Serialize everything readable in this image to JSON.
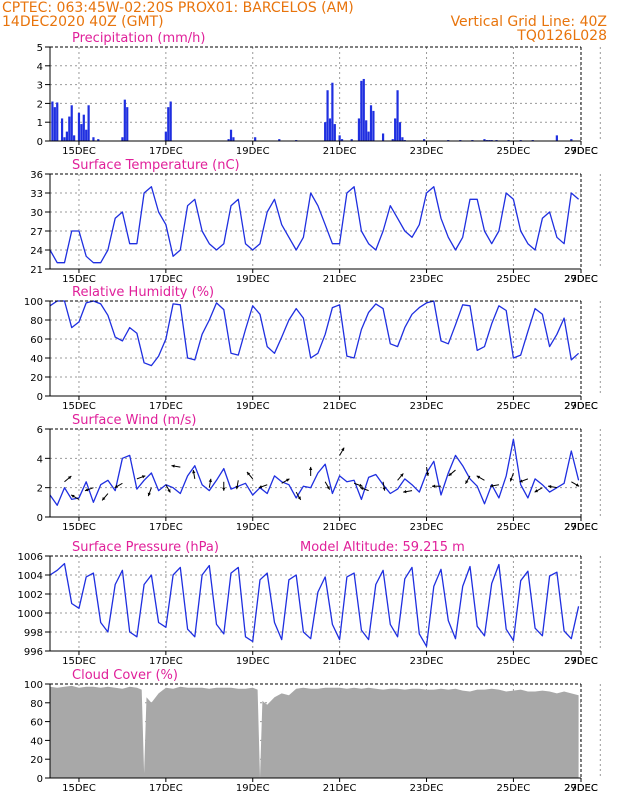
{
  "header": {
    "line1_left": "CPTEC:    063:45W-02:20S    PROX01: BARCELOS (AM)",
    "line2_left": "14DEC2020 40Z (GMT)",
    "line2_right": "Vertical Grid Line: 40Z",
    "line3_right": "TQ0126L028"
  },
  "colors": {
    "line": "#1f2fe0",
    "bar": "#1f2fe0",
    "cloud": "#a8a8a8",
    "title": "#e0209a",
    "header": "#e8740c",
    "grid": "#9a9a9a"
  },
  "x_tick_labels": [
    "15DEC",
    "17DEC",
    "19DEC",
    "21DEC",
    "23DEC",
    "25DEC",
    "27DEC",
    "29DEC"
  ],
  "chart_data": [
    {
      "id": "precip",
      "type": "bar",
      "title": "Precipitation (mm/h)",
      "ylim": [
        0,
        5
      ],
      "yticks": [
        0,
        1,
        2,
        3,
        4,
        5
      ],
      "x_hours": [
        2,
        4,
        6,
        10,
        12,
        14,
        16,
        18,
        20,
        24,
        26,
        28,
        30,
        32,
        36,
        40,
        60,
        62,
        64,
        96,
        98,
        100,
        148,
        150,
        152,
        170,
        190,
        204,
        228,
        230,
        232,
        234,
        236,
        240,
        242,
        250,
        256,
        258,
        260,
        262,
        264,
        266,
        268,
        276,
        284,
        286,
        288,
        290,
        292,
        294,
        310,
        330,
        340,
        350,
        360,
        362,
        364,
        366,
        370,
        380,
        390,
        400,
        420,
        432
      ],
      "values": [
        2.1,
        1.8,
        2.05,
        1.2,
        0.2,
        0.5,
        1.3,
        1.9,
        0.3,
        1.5,
        0.9,
        1.4,
        0.6,
        1.9,
        0.2,
        0.1,
        0.2,
        2.2,
        1.8,
        0.5,
        1.8,
        2.1,
        0.1,
        0.6,
        0.2,
        0.2,
        0.1,
        0.05,
        1.0,
        2.7,
        1.2,
        3.1,
        0.9,
        0.3,
        0.1,
        0.1,
        1.2,
        3.2,
        3.3,
        1.1,
        0.5,
        1.9,
        1.6,
        0.4,
        0.1,
        1.2,
        2.7,
        1.0,
        0.2,
        0.05,
        0.1,
        0.05,
        0.05,
        0.05,
        0.1,
        0.05,
        0.05,
        0.05,
        0.05,
        0.05,
        0.05,
        0.05,
        0.3,
        0.1
      ]
    },
    {
      "id": "temp",
      "type": "line",
      "title": "Surface Temperature (nC)",
      "ylim": [
        21,
        36
      ],
      "yticks": [
        21,
        24,
        27,
        30,
        33,
        36
      ],
      "x": [
        0,
        6,
        12,
        18,
        24,
        30,
        36,
        42,
        48,
        54,
        60,
        66,
        72,
        78,
        84,
        90,
        96,
        102,
        108,
        114,
        120,
        126,
        132,
        138,
        144,
        150,
        156,
        162,
        168,
        174,
        180,
        186,
        192,
        198,
        204,
        210,
        216,
        222,
        228,
        234,
        240,
        246,
        252,
        258,
        264,
        270,
        276,
        282,
        288,
        294,
        300,
        306,
        312,
        318,
        324,
        330,
        336,
        342,
        348,
        354,
        360,
        366,
        372,
        378,
        384,
        390,
        396,
        402,
        408,
        414,
        420,
        426,
        432,
        438
      ],
      "values": [
        24,
        22,
        22,
        27,
        27,
        23,
        22,
        22,
        24,
        29,
        30,
        25,
        25,
        33,
        34,
        30,
        28,
        23,
        24,
        31,
        32,
        27,
        25,
        24,
        25,
        31,
        32,
        25,
        24,
        25,
        30,
        32,
        28,
        26,
        24,
        26,
        33,
        31,
        28,
        25,
        25,
        33,
        34,
        27,
        25,
        24,
        27,
        31,
        29,
        27,
        26,
        28,
        33,
        34,
        29,
        26,
        24,
        26,
        32,
        32,
        27,
        25,
        27,
        33,
        32,
        27,
        25,
        24,
        29,
        30,
        26,
        25,
        33,
        32
      ]
    },
    {
      "id": "rh",
      "type": "line",
      "title": "Relative Humidity (%)",
      "ylim": [
        0,
        100
      ],
      "yticks": [
        0,
        20,
        40,
        60,
        80,
        100
      ],
      "x": [
        0,
        6,
        12,
        18,
        24,
        30,
        36,
        42,
        48,
        54,
        60,
        66,
        72,
        78,
        84,
        90,
        96,
        102,
        108,
        114,
        120,
        126,
        132,
        138,
        144,
        150,
        156,
        162,
        168,
        174,
        180,
        186,
        192,
        198,
        204,
        210,
        216,
        222,
        228,
        234,
        240,
        246,
        252,
        258,
        264,
        270,
        276,
        282,
        288,
        294,
        300,
        306,
        312,
        318,
        324,
        330,
        336,
        342,
        348,
        354,
        360,
        366,
        372,
        378,
        384,
        390,
        396,
        402,
        408,
        414,
        420,
        426,
        432,
        438
      ],
      "values": [
        95,
        100,
        100,
        72,
        78,
        98,
        100,
        97,
        85,
        62,
        58,
        72,
        66,
        35,
        32,
        42,
        60,
        97,
        96,
        40,
        38,
        65,
        80,
        98,
        91,
        45,
        43,
        70,
        95,
        86,
        52,
        45,
        62,
        80,
        92,
        82,
        40,
        45,
        65,
        93,
        96,
        42,
        40,
        70,
        88,
        97,
        92,
        55,
        52,
        72,
        86,
        93,
        98,
        100,
        58,
        55,
        75,
        96,
        95,
        48,
        52,
        76,
        95,
        90,
        40,
        43,
        68,
        92,
        86,
        52,
        65,
        82,
        38,
        45
      ]
    },
    {
      "id": "wind",
      "type": "line",
      "title": "Surface Wind (m/s)",
      "ylim": [
        0,
        6
      ],
      "yticks": [
        0,
        2,
        4,
        6
      ],
      "x": [
        0,
        6,
        12,
        18,
        24,
        30,
        36,
        42,
        48,
        54,
        60,
        66,
        72,
        78,
        84,
        90,
        96,
        102,
        108,
        114,
        120,
        126,
        132,
        138,
        144,
        150,
        156,
        162,
        168,
        174,
        180,
        186,
        192,
        198,
        204,
        210,
        216,
        222,
        228,
        234,
        240,
        246,
        252,
        258,
        264,
        270,
        276,
        282,
        288,
        294,
        300,
        306,
        312,
        318,
        324,
        330,
        336,
        342,
        348,
        354,
        360,
        366,
        372,
        378,
        384,
        390,
        396,
        402,
        408,
        414,
        420,
        426,
        432,
        438
      ],
      "values": [
        1.5,
        0.8,
        2.0,
        1.2,
        1.3,
        2.4,
        1.0,
        2.2,
        2.5,
        1.8,
        4.0,
        4.2,
        1.9,
        2.5,
        3.0,
        1.8,
        2.2,
        2.0,
        1.6,
        2.8,
        3.5,
        2.2,
        1.8,
        2.5,
        3.3,
        1.9,
        2.1,
        2.3,
        1.5,
        2.0,
        1.6,
        2.8,
        2.4,
        2.2,
        1.3,
        2.1,
        2.0,
        3.0,
        3.6,
        1.6,
        2.8,
        2.4,
        2.5,
        1.2,
        2.7,
        2.9,
        2.2,
        1.6,
        1.9,
        2.6,
        2.2,
        1.7,
        3.0,
        3.8,
        1.5,
        3.0,
        4.2,
        3.5,
        2.6,
        2.1,
        0.9,
        2.2,
        1.3,
        2.8,
        5.3,
        2.2,
        1.3,
        2.6,
        2.2,
        1.7,
        2.0,
        2.3,
        4.5,
        2.5
      ],
      "barbs_hour": [
        12,
        24,
        36,
        48,
        60,
        72,
        84,
        96,
        108,
        120,
        132,
        144,
        156,
        168,
        180,
        192,
        204,
        216,
        228,
        240,
        252,
        264,
        276,
        288,
        300,
        312,
        324,
        336,
        348,
        360,
        372,
        384,
        396,
        408,
        420,
        432
      ],
      "barbs_speed": [
        2.4,
        1.2,
        2.0,
        1.6,
        2.3,
        2.6,
        2.0,
        2.2,
        3.4,
        2.6,
        2.0,
        2.4,
        2.5,
        2.6,
        2.2,
        2.3,
        1.7,
        2.8,
        2.4,
        4.2,
        2.3,
        1.8,
        2.4,
        2.5,
        1.8,
        3.4,
        2.1,
        3.2,
        2.8,
        2.5,
        2.2,
        3.0,
        2.6,
        2.0,
        2.0,
        2.4
      ],
      "barbs_dir_deg": [
        40,
        150,
        200,
        230,
        210,
        20,
        250,
        300,
        170,
        100,
        80,
        270,
        260,
        130,
        200,
        30,
        300,
        90,
        300,
        60,
        340,
        160,
        280,
        50,
        190,
        280,
        180,
        220,
        240,
        150,
        190,
        250,
        200,
        210,
        170,
        330
      ]
    },
    {
      "id": "press",
      "type": "line",
      "title": "Surface Pressure (hPa)",
      "annotation": "Model Altitude: 59.215 m",
      "ylim": [
        996,
        1006
      ],
      "yticks": [
        996,
        998,
        1000,
        1002,
        1004,
        1006
      ],
      "x": [
        0,
        6,
        12,
        18,
        24,
        30,
        36,
        42,
        48,
        54,
        60,
        66,
        72,
        78,
        84,
        90,
        96,
        102,
        108,
        114,
        120,
        126,
        132,
        138,
        144,
        150,
        156,
        162,
        168,
        174,
        180,
        186,
        192,
        198,
        204,
        210,
        216,
        222,
        228,
        234,
        240,
        246,
        252,
        258,
        264,
        270,
        276,
        282,
        288,
        294,
        300,
        306,
        312,
        318,
        324,
        330,
        336,
        342,
        348,
        354,
        360,
        366,
        372,
        378,
        384,
        390,
        396,
        402,
        408,
        414,
        420,
        426,
        432,
        438
      ],
      "values": [
        1004,
        1004.5,
        1005.2,
        1001,
        1000.5,
        1003.8,
        1004.2,
        999,
        998,
        1003,
        1004.5,
        998,
        997.5,
        1003,
        1004,
        999,
        998.5,
        1004,
        1004.8,
        998.3,
        997.5,
        1004,
        1005,
        998.8,
        997.8,
        1004.2,
        1004.8,
        997.5,
        997,
        1003.5,
        1004.2,
        999,
        997.2,
        1003.5,
        1004,
        998,
        997.3,
        1002.2,
        1003.8,
        998.8,
        997.2,
        1003.8,
        1004.2,
        998.2,
        997.2,
        1003,
        1004.5,
        998.8,
        997.5,
        1003.6,
        1004.8,
        997.8,
        996.5,
        1002.8,
        1004.6,
        999.2,
        997.3,
        1002.8,
        1004.9,
        998.6,
        997.6,
        1003.1,
        1005.1,
        998.3,
        997.1,
        1003.4,
        1004.4,
        998.4,
        997.6,
        1003.9,
        1004.3,
        998.1,
        997.3,
        1000.7
      ]
    },
    {
      "id": "cloud",
      "type": "area",
      "title": "Cloud Cover (%)",
      "ylim": [
        0,
        100
      ],
      "yticks": [
        0,
        20,
        40,
        60,
        80,
        100
      ],
      "x": [
        0,
        6,
        12,
        18,
        24,
        30,
        36,
        42,
        48,
        54,
        60,
        66,
        72,
        76,
        78,
        80,
        84,
        90,
        96,
        102,
        108,
        114,
        120,
        126,
        132,
        138,
        144,
        150,
        156,
        162,
        168,
        172,
        174,
        176,
        180,
        186,
        192,
        198,
        204,
        210,
        216,
        222,
        228,
        234,
        240,
        246,
        252,
        258,
        264,
        270,
        276,
        282,
        288,
        294,
        300,
        306,
        312,
        318,
        324,
        330,
        336,
        342,
        348,
        354,
        360,
        366,
        372,
        378,
        384,
        390,
        396,
        402,
        408,
        414,
        420,
        426,
        432,
        438
      ],
      "values": [
        97,
        96,
        97,
        98,
        96,
        97,
        97,
        96,
        97,
        96,
        95,
        97,
        96,
        94,
        5,
        86,
        80,
        90,
        96,
        95,
        97,
        96,
        96,
        96,
        95,
        96,
        96,
        96,
        95,
        95,
        96,
        94,
        0,
        82,
        78,
        86,
        90,
        88,
        95,
        96,
        95,
        95,
        96,
        96,
        96,
        95,
        96,
        95,
        96,
        95,
        94,
        95,
        95,
        94,
        95,
        95,
        94,
        94,
        95,
        94,
        95,
        93,
        92,
        94,
        94,
        95,
        94,
        92,
        93,
        94,
        92,
        92,
        93,
        92,
        90,
        92,
        90,
        88
      ]
    }
  ]
}
